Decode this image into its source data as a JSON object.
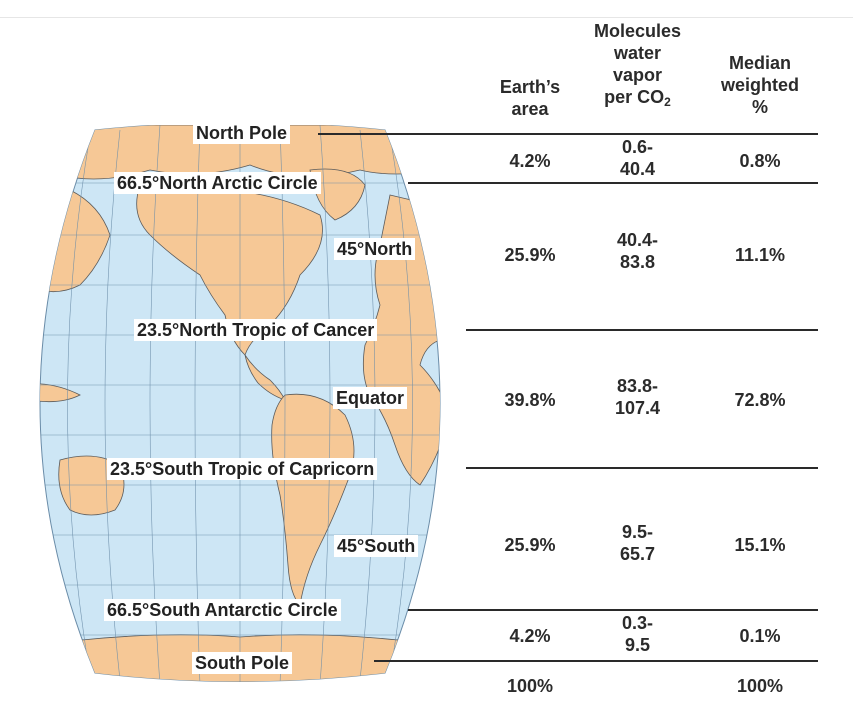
{
  "headers": {
    "area": [
      "Earth’s",
      "area"
    ],
    "molecules": [
      "Molecules",
      "water",
      "vapor",
      "per CO"
    ],
    "molecules_sub": "2",
    "median": [
      "Median",
      "weighted",
      "%"
    ]
  },
  "latitudes": {
    "north_pole": "North Pole",
    "arctic": "66.5°North  Arctic Circle",
    "n45": "45°North",
    "cancer": "23.5°North  Tropic of Cancer",
    "equator": "Equator",
    "capricorn": "23.5°South  Tropic of Capricorn",
    "s45": "45°South",
    "antarctic": "66.5°South  Antarctic Circle",
    "south_pole": "South Pole"
  },
  "rows": [
    {
      "area": "4.2%",
      "molecules": [
        "0.6-",
        "40.4"
      ],
      "median": "0.8%"
    },
    {
      "area": "25.9%",
      "molecules": [
        "40.4-",
        "83.8"
      ],
      "median": "11.1%"
    },
    {
      "area": "39.8%",
      "molecules": [
        "83.8-",
        "107.4"
      ],
      "median": "72.8%"
    },
    {
      "area": "25.9%",
      "molecules": [
        "9.5-",
        "65.7"
      ],
      "median": "15.1%"
    },
    {
      "area": "4.2%",
      "molecules": [
        "0.3-",
        "9.5"
      ],
      "median": "0.1%"
    }
  ],
  "totals": {
    "area": "100%",
    "median": "100%"
  },
  "colors": {
    "ocean": "#cde6f5",
    "land": "#f6c896",
    "grid": "#6a8ca8",
    "rule": "#2a2a2a"
  }
}
